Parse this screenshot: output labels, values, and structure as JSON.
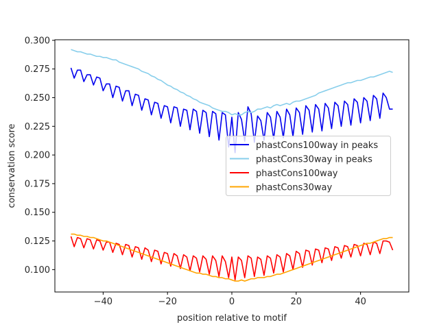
{
  "chart_data": {
    "type": "line",
    "title": "",
    "xlabel": "position relative to motif",
    "ylabel": "conservation score",
    "xlim": [
      -55,
      55
    ],
    "ylim": [
      0.0805,
      0.3005
    ],
    "xticks": [
      -40,
      -20,
      0,
      20,
      40
    ],
    "xtick_labels": [
      "−40",
      "−20",
      "0",
      "20",
      "40"
    ],
    "yticks": [
      0.1,
      0.125,
      0.15,
      0.175,
      0.2,
      0.225,
      0.25,
      0.275,
      0.3
    ],
    "ytick_labels": [
      "0.100",
      "0.125",
      "0.150",
      "0.175",
      "0.200",
      "0.225",
      "0.250",
      "0.275",
      "0.300"
    ],
    "grid": false,
    "legend_position": "center-right",
    "x_start": -50,
    "x_step": 1,
    "series": [
      {
        "name": "phastCons100way in peaks",
        "color": "#0000ee",
        "values": [
          0.276,
          0.267,
          0.274,
          0.274,
          0.264,
          0.27,
          0.27,
          0.261,
          0.268,
          0.267,
          0.256,
          0.262,
          0.262,
          0.25,
          0.26,
          0.259,
          0.247,
          0.256,
          0.256,
          0.243,
          0.253,
          0.252,
          0.239,
          0.249,
          0.248,
          0.235,
          0.246,
          0.245,
          0.232,
          0.243,
          0.242,
          0.228,
          0.242,
          0.241,
          0.225,
          0.24,
          0.239,
          0.222,
          0.24,
          0.238,
          0.219,
          0.239,
          0.237,
          0.216,
          0.238,
          0.236,
          0.213,
          0.237,
          0.235,
          0.207,
          0.233,
          0.202,
          0.237,
          0.231,
          0.212,
          0.242,
          0.236,
          0.211,
          0.234,
          0.23,
          0.213,
          0.237,
          0.233,
          0.214,
          0.238,
          0.233,
          0.215,
          0.24,
          0.235,
          0.216,
          0.241,
          0.237,
          0.218,
          0.243,
          0.239,
          0.22,
          0.244,
          0.24,
          0.221,
          0.245,
          0.241,
          0.223,
          0.246,
          0.243,
          0.225,
          0.247,
          0.244,
          0.226,
          0.249,
          0.246,
          0.228,
          0.25,
          0.247,
          0.23,
          0.252,
          0.249,
          0.232,
          0.254,
          0.25,
          0.24,
          0.24
        ]
      },
      {
        "name": "phastCons30way in peaks",
        "color": "#87ceeb",
        "values": [
          0.292,
          0.291,
          0.29,
          0.29,
          0.289,
          0.288,
          0.288,
          0.287,
          0.286,
          0.286,
          0.285,
          0.285,
          0.284,
          0.283,
          0.283,
          0.281,
          0.28,
          0.279,
          0.278,
          0.277,
          0.276,
          0.275,
          0.273,
          0.272,
          0.271,
          0.269,
          0.268,
          0.266,
          0.265,
          0.263,
          0.261,
          0.26,
          0.258,
          0.257,
          0.255,
          0.254,
          0.252,
          0.251,
          0.249,
          0.248,
          0.246,
          0.245,
          0.244,
          0.243,
          0.241,
          0.24,
          0.239,
          0.238,
          0.238,
          0.237,
          0.235,
          0.236,
          0.235,
          0.235,
          0.237,
          0.238,
          0.237,
          0.238,
          0.24,
          0.24,
          0.241,
          0.242,
          0.241,
          0.243,
          0.244,
          0.243,
          0.244,
          0.245,
          0.244,
          0.246,
          0.247,
          0.247,
          0.248,
          0.249,
          0.25,
          0.251,
          0.252,
          0.254,
          0.255,
          0.256,
          0.257,
          0.258,
          0.259,
          0.26,
          0.261,
          0.262,
          0.263,
          0.263,
          0.264,
          0.265,
          0.265,
          0.266,
          0.267,
          0.268,
          0.268,
          0.269,
          0.27,
          0.271,
          0.272,
          0.273,
          0.272
        ]
      },
      {
        "name": "phastCons100way",
        "color": "#ff0000",
        "values": [
          0.129,
          0.12,
          0.128,
          0.127,
          0.119,
          0.127,
          0.126,
          0.118,
          0.126,
          0.125,
          0.117,
          0.124,
          0.124,
          0.115,
          0.123,
          0.122,
          0.113,
          0.122,
          0.121,
          0.111,
          0.12,
          0.119,
          0.109,
          0.119,
          0.117,
          0.107,
          0.117,
          0.116,
          0.105,
          0.115,
          0.114,
          0.103,
          0.114,
          0.112,
          0.101,
          0.113,
          0.111,
          0.099,
          0.112,
          0.11,
          0.098,
          0.112,
          0.109,
          0.096,
          0.112,
          0.108,
          0.094,
          0.112,
          0.107,
          0.093,
          0.111,
          0.091,
          0.111,
          0.108,
          0.093,
          0.112,
          0.11,
          0.094,
          0.111,
          0.109,
          0.095,
          0.112,
          0.11,
          0.097,
          0.113,
          0.111,
          0.098,
          0.114,
          0.112,
          0.1,
          0.116,
          0.114,
          0.102,
          0.117,
          0.116,
          0.104,
          0.118,
          0.117,
          0.106,
          0.119,
          0.118,
          0.108,
          0.12,
          0.119,
          0.11,
          0.121,
          0.12,
          0.111,
          0.122,
          0.121,
          0.112,
          0.123,
          0.122,
          0.113,
          0.124,
          0.123,
          0.114,
          0.125,
          0.125,
          0.124,
          0.117
        ]
      },
      {
        "name": "phastCons30way",
        "color": "#ffa500",
        "values": [
          0.131,
          0.131,
          0.13,
          0.13,
          0.129,
          0.129,
          0.128,
          0.128,
          0.127,
          0.126,
          0.125,
          0.125,
          0.124,
          0.123,
          0.122,
          0.121,
          0.12,
          0.119,
          0.118,
          0.117,
          0.116,
          0.115,
          0.114,
          0.113,
          0.112,
          0.111,
          0.11,
          0.109,
          0.108,
          0.107,
          0.106,
          0.105,
          0.104,
          0.103,
          0.102,
          0.101,
          0.1,
          0.099,
          0.098,
          0.097,
          0.097,
          0.096,
          0.096,
          0.095,
          0.094,
          0.094,
          0.093,
          0.093,
          0.092,
          0.092,
          0.091,
          0.09,
          0.09,
          0.091,
          0.09,
          0.091,
          0.092,
          0.092,
          0.093,
          0.093,
          0.093,
          0.094,
          0.094,
          0.095,
          0.096,
          0.096,
          0.097,
          0.098,
          0.099,
          0.1,
          0.101,
          0.102,
          0.103,
          0.104,
          0.105,
          0.106,
          0.107,
          0.108,
          0.109,
          0.11,
          0.111,
          0.112,
          0.113,
          0.114,
          0.115,
          0.116,
          0.117,
          0.118,
          0.119,
          0.12,
          0.121,
          0.122,
          0.123,
          0.123,
          0.124,
          0.125,
          0.126,
          0.127,
          0.127,
          0.128,
          0.128
        ]
      }
    ]
  }
}
